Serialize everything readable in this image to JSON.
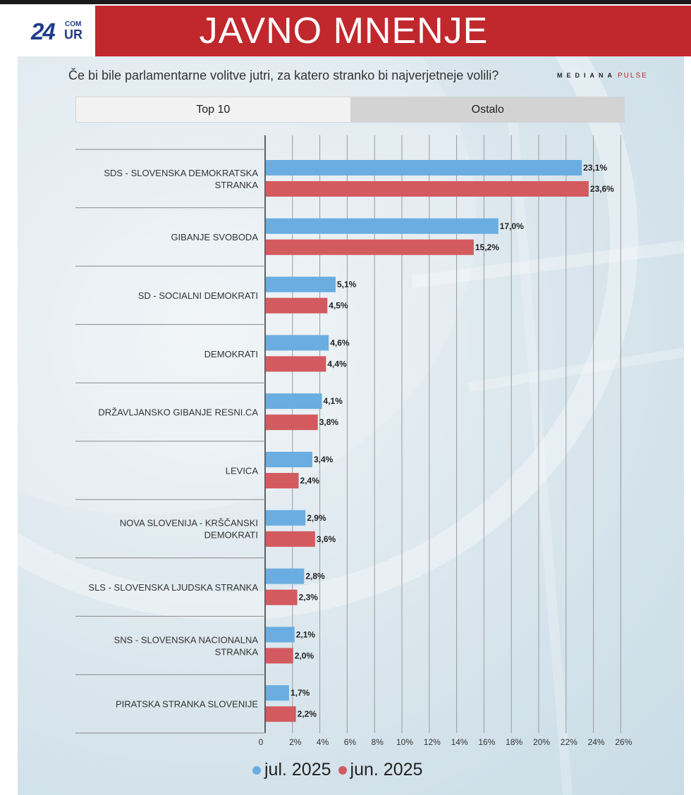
{
  "logo": {
    "number": "24",
    "com": "COM",
    "ur": "UR"
  },
  "banner": {
    "title": "JAVNO MNENJE"
  },
  "question": "Če bi bile parlamentarne volitve jutri, za katero stranko bi najverjetneje volili?",
  "brand": {
    "name": "MEDIANA",
    "pulse": "PULSE"
  },
  "tabs": [
    {
      "label": "Top 10"
    },
    {
      "label": "Ostalo"
    }
  ],
  "colors": {
    "jul": "#6aaee1",
    "jun": "#d35a5e",
    "banner": "#c0282d"
  },
  "chart_data": {
    "type": "bar",
    "orientation": "horizontal",
    "categories": [
      [
        "SDS - SLOVENSKA DEMOKRATSKA",
        "STRANKA"
      ],
      [
        "GIBANJE SVOBODA"
      ],
      [
        "SD - SOCIALNI DEMOKRATI"
      ],
      [
        "DEMOKRATI"
      ],
      [
        "DRŽAVLJANSKO GIBANJE RESNI.CA"
      ],
      [
        "LEVICA"
      ],
      [
        "NOVA SLOVENIJA - KRŠČANSKI",
        "DEMOKRATI"
      ],
      [
        "SLS - SLOVENSKA LJUDSKA STRANKA"
      ],
      [
        "SNS - SLOVENSKA NACIONALNA",
        "STRANKA"
      ],
      [
        "PIRATSKA STRANKA SLOVENIJE"
      ]
    ],
    "series": [
      {
        "name": "jul. 2025",
        "values": [
          23.1,
          17.0,
          5.1,
          4.6,
          4.1,
          3.4,
          2.9,
          2.8,
          2.1,
          1.7
        ],
        "labels": [
          "23,1%",
          "17,0%",
          "5,1%",
          "4,6%",
          "4,1%",
          "3,4%",
          "2,9%",
          "2,8%",
          "2,1%",
          "1,7%"
        ]
      },
      {
        "name": "jun. 2025",
        "values": [
          23.6,
          15.2,
          4.5,
          4.4,
          3.8,
          2.4,
          3.6,
          2.3,
          2.0,
          2.2
        ],
        "labels": [
          "23,6%",
          "15,2%",
          "4,5%",
          "4,4%",
          "3,8%",
          "2,4%",
          "3,6%",
          "2,3%",
          "2,0%",
          "2,2%"
        ]
      }
    ],
    "x_ticks": [
      0,
      2,
      4,
      6,
      8,
      10,
      12,
      14,
      16,
      18,
      20,
      22,
      24,
      26
    ],
    "x_tick_labels": [
      "0",
      "2%",
      "4%",
      "6%",
      "8%",
      "10%",
      "12%",
      "14%",
      "16%",
      "18%",
      "20%",
      "22%",
      "24%",
      "26%"
    ],
    "xlim": [
      0,
      26
    ],
    "grid": true,
    "legend": "bottom-center"
  }
}
